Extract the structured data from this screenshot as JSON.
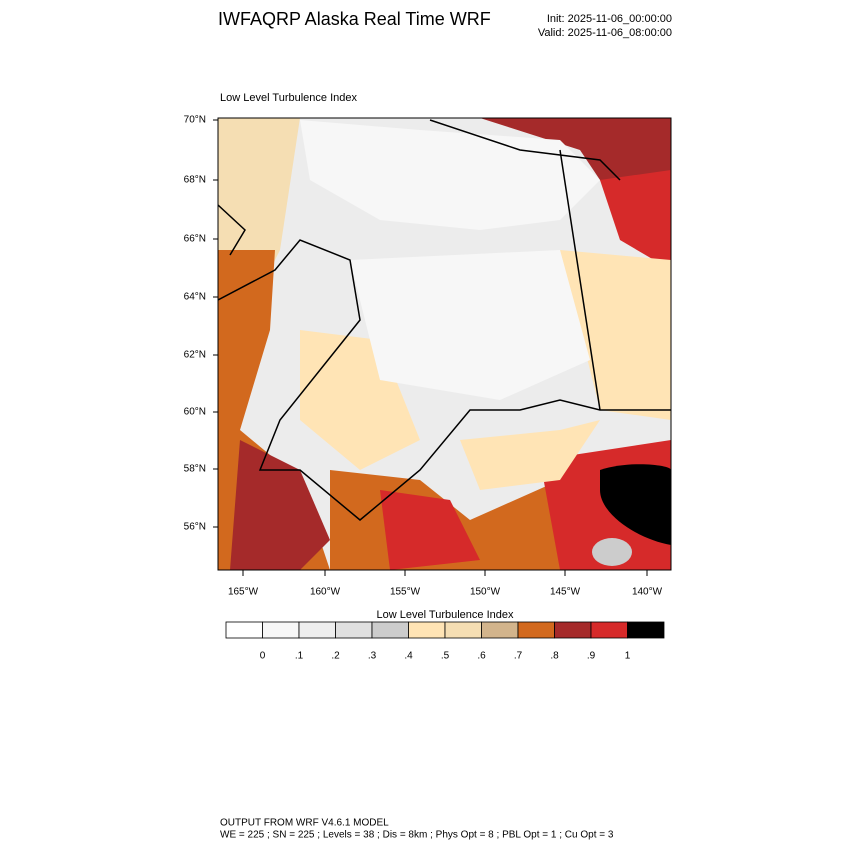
{
  "header": {
    "title": "IWFAQRP Alaska Real Time WRF",
    "init": "Init: 2025-11-06_00:00:00",
    "valid": "Valid: 2025-11-06_08:00:00"
  },
  "map": {
    "title": "Low Level Turbulence Index",
    "lat_labels": [
      "70°N",
      "68°N",
      "66°N",
      "64°N",
      "62°N",
      "60°N",
      "58°N",
      "56°N"
    ],
    "lon_labels": [
      "165°W",
      "160°W",
      "155°W",
      "150°W",
      "145°W",
      "140°W"
    ]
  },
  "colorbar": {
    "title": "Low Level Turbulence Index",
    "labels": [
      "0",
      ".1",
      ".2",
      ".3",
      ".4",
      ".5",
      ".6",
      ".7",
      ".8",
      ".9",
      "1"
    ],
    "colors": [
      "#ffffff",
      "#f7f7f7",
      "#eeeeee",
      "#e0e0e0",
      "#cccccc",
      "#ffe4b5",
      "#f5deb3",
      "#d2b48c",
      "#d2691e",
      "#a52a2a",
      "#d62a2a",
      "#000000"
    ]
  },
  "footer": {
    "line1": "OUTPUT FROM WRF V4.6.1 MODEL",
    "line2": "WE = 225 ; SN = 225 ; Levels = 38 ; Dis = 8km ; Phys Opt = 8 ; PBL Opt = 1 ; Cu Opt = 3"
  }
}
